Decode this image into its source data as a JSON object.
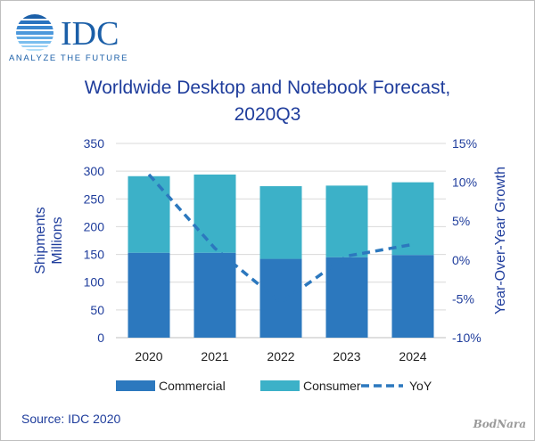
{
  "logo": {
    "brand": "IDC",
    "tagline": "ANALYZE THE FUTURE"
  },
  "title_line1": "Worldwide Desktop and Notebook Forecast,",
  "title_line2": "2020Q3",
  "source": "Source: IDC 2020",
  "watermark": "BodNara",
  "colors": {
    "commercial": "#2c78be",
    "consumer": "#3cb1c8",
    "yoy": "#2c78be",
    "text": "#1f3d9c"
  },
  "chart_data": {
    "type": "bar",
    "stacked": true,
    "categories": [
      "2020",
      "2021",
      "2022",
      "2023",
      "2024"
    ],
    "series": [
      {
        "name": "Commercial",
        "values": [
          153,
          153,
          142,
          145,
          149
        ]
      },
      {
        "name": "Consumer",
        "values": [
          138,
          141,
          131,
          129,
          131
        ]
      }
    ],
    "line_series": [
      {
        "name": "YoY",
        "axis": "right",
        "style": "dashed",
        "values": [
          11.0,
          1.5,
          -5.5,
          0.5,
          2.0
        ]
      }
    ],
    "ylabel": "Shipments\nMillions",
    "ylabel_right": "Year-Over-Year Growth",
    "ylim": [
      0,
      350
    ],
    "yticks": [
      "0",
      "50",
      "100",
      "150",
      "200",
      "250",
      "300",
      "350"
    ],
    "ylim_right": [
      -10,
      15
    ],
    "yticks_right": [
      "-10%",
      "-5%",
      "0%",
      "5%",
      "10%",
      "15%"
    ],
    "legend": [
      "Commercial",
      "Consumer",
      "YoY"
    ],
    "legend_position": "bottom",
    "grid": "horizontal"
  }
}
